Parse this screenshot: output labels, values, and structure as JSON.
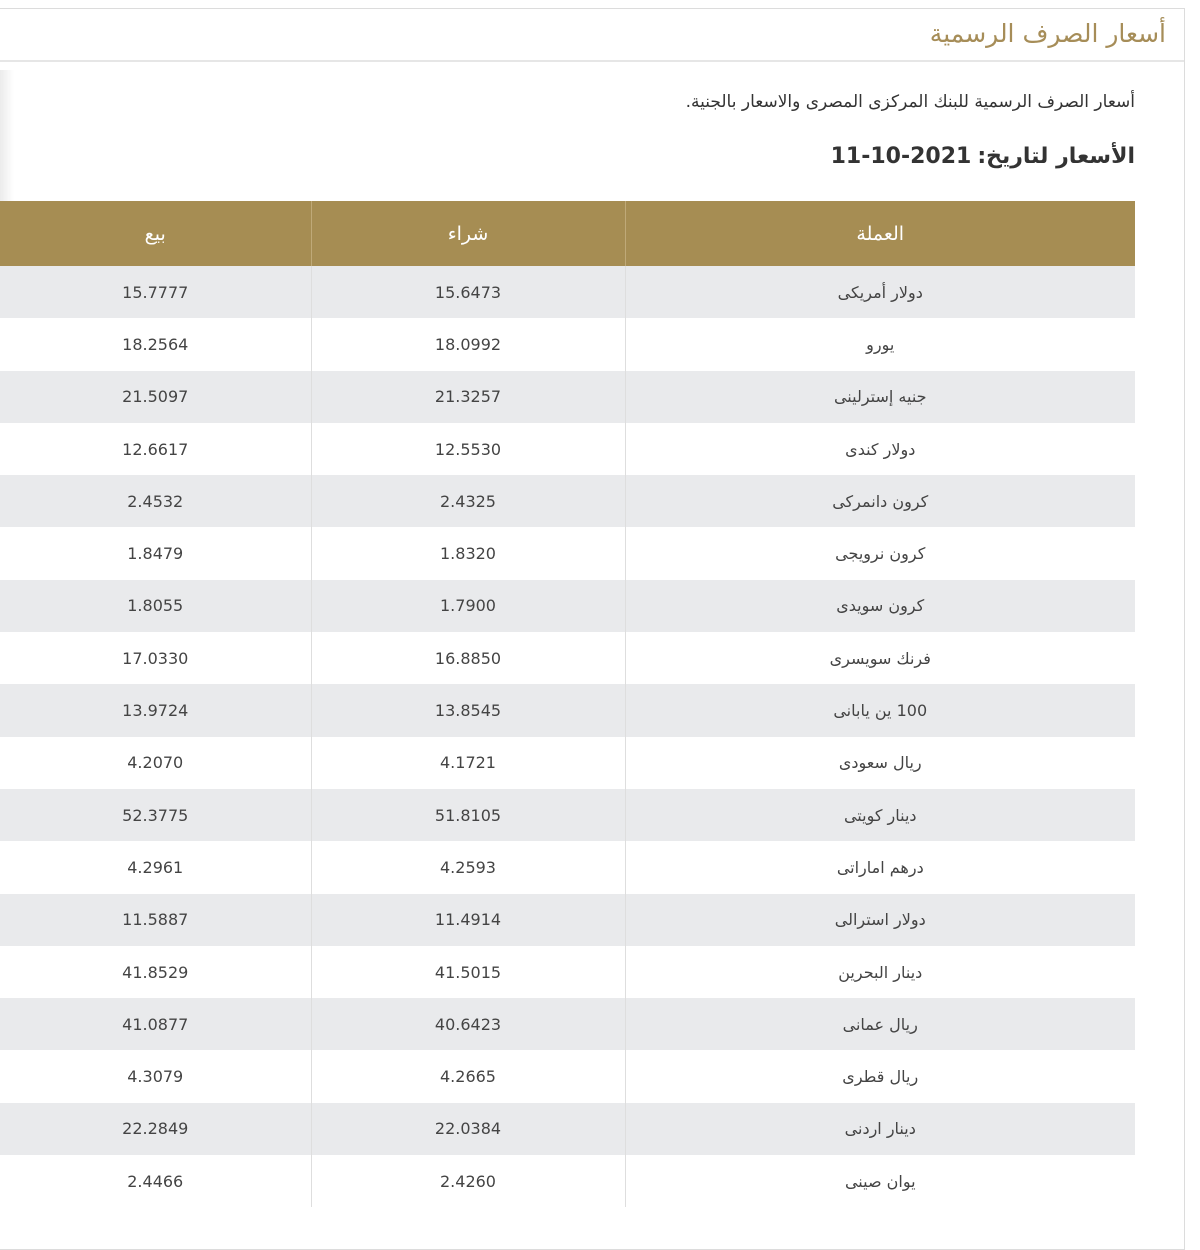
{
  "panel": {
    "title": "أسعار الصرف الرسمية"
  },
  "intro": "أسعار الصرف الرسمية للبنك المركزى المصرى والاسعار بالجنية.",
  "date_heading": {
    "label": "الأسعار لتاريخ:",
    "value": "2021-10-11"
  },
  "table": {
    "columns": [
      "العملة",
      "شراء",
      "بيع"
    ],
    "rows": [
      {
        "currency": "دولار أمريكى",
        "buy": "15.6473",
        "sell": "15.7777"
      },
      {
        "currency": "يورو",
        "buy": "18.0992",
        "sell": "18.2564"
      },
      {
        "currency": "جنيه إسترلينى",
        "buy": "21.3257",
        "sell": "21.5097"
      },
      {
        "currency": "دولار كندى",
        "buy": "12.5530",
        "sell": "12.6617"
      },
      {
        "currency": "كرون دانمركى",
        "buy": "2.4325",
        "sell": "2.4532"
      },
      {
        "currency": "كرون نرويجى",
        "buy": "1.8320",
        "sell": "1.8479"
      },
      {
        "currency": "كرون سويدى",
        "buy": "1.7900",
        "sell": "1.8055"
      },
      {
        "currency": "فرنك سويسرى",
        "buy": "16.8850",
        "sell": "17.0330"
      },
      {
        "currency": "100 ين يابانى",
        "buy": "13.8545",
        "sell": "13.9724"
      },
      {
        "currency": "ريال سعودى",
        "buy": "4.1721",
        "sell": "4.2070"
      },
      {
        "currency": "دينار كويتى",
        "buy": "51.8105",
        "sell": "52.3775"
      },
      {
        "currency": "درهم اماراتى",
        "buy": "4.2593",
        "sell": "4.2961"
      },
      {
        "currency": "دولار استرالى",
        "buy": "11.4914",
        "sell": "11.5887"
      },
      {
        "currency": "دينار البحرين",
        "buy": "41.5015",
        "sell": "41.8529"
      },
      {
        "currency": "ريال عمانى",
        "buy": "40.6423",
        "sell": "41.0877"
      },
      {
        "currency": "ريال قطرى",
        "buy": "4.2665",
        "sell": "4.3079"
      },
      {
        "currency": "دينار اردنى",
        "buy": "22.0384",
        "sell": "22.2849"
      },
      {
        "currency": "يوان صينى",
        "buy": "2.4260",
        "sell": "2.4466"
      }
    ]
  },
  "colors": {
    "accent": "#a68d53",
    "title": "#a68d58",
    "stripe": "#e9eaec"
  }
}
